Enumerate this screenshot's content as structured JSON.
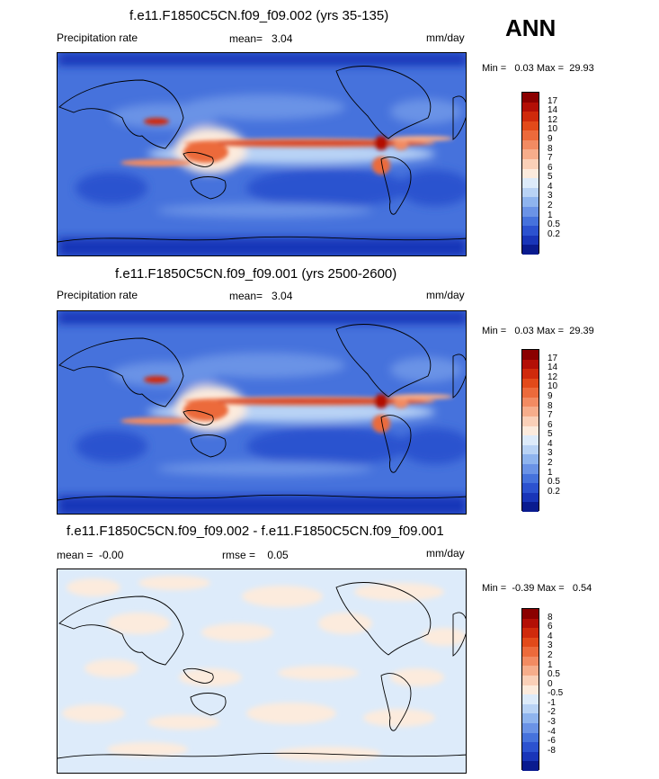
{
  "season": "ANN",
  "panels": [
    {
      "title": "f.e11.F1850C5CN.f09_f09.002 (yrs 35-135)",
      "left_label": "Precipitation rate",
      "mean_text": "mean=   3.04",
      "units": "mm/day",
      "minmax": "Min =   0.03 Max =  29.93"
    },
    {
      "title": "f.e11.F1850C5CN.f09_f09.001 (yrs 2500-2600)",
      "left_label": "Precipitation rate",
      "mean_text": "mean=   3.04",
      "units": "mm/day",
      "minmax": "Min =   0.03 Max =  29.39"
    },
    {
      "title": "f.e11.F1850C5CN.f09_f09.002 - f.e11.F1850C5CN.f09_f09.001",
      "left_label": "mean =  -0.00",
      "mean_text": "rmse =    0.05",
      "units": "mm/day",
      "minmax": "Min =  -0.39 Max =   0.54"
    }
  ],
  "colorbars": {
    "abs_ticks": [
      "17",
      "14",
      "12",
      "10",
      "9",
      "8",
      "7",
      "6",
      "5",
      "4",
      "3",
      "2",
      "1",
      "0.5",
      "0.2"
    ],
    "abs_colors": [
      "#8b0000",
      "#b30f06",
      "#cf2a0c",
      "#e24a1a",
      "#ec6a3b",
      "#f28b62",
      "#f6ad8b",
      "#fad0b8",
      "#fcebdd",
      "#ddebfa",
      "#b9d3f5",
      "#8fb4ee",
      "#6b93e6",
      "#4672dc",
      "#2c52cf",
      "#1935b8",
      "#0a1b8f"
    ],
    "diff_ticks": [
      "8",
      "6",
      "4",
      "3",
      "2",
      "1",
      "0.5",
      "0",
      "-0.5",
      "-1",
      "-2",
      "-3",
      "-4",
      "-6",
      "-8"
    ],
    "diff_colors": [
      "#8b0000",
      "#b30f06",
      "#cf2a0c",
      "#e24a1a",
      "#ec6a3b",
      "#f28b62",
      "#f6ad8b",
      "#fad0b8",
      "#fcebdd",
      "#ddebfa",
      "#b9d3f5",
      "#8fb4ee",
      "#6b93e6",
      "#4672dc",
      "#2c52cf",
      "#1935b8",
      "#0a1b8f"
    ]
  },
  "chart_data": [
    {
      "type": "heatmap",
      "title": "f.e11.F1850C5CN.f09_f09.002 (yrs 35-135)",
      "variable": "Precipitation rate",
      "units": "mm/day",
      "mean": 3.04,
      "min": 0.03,
      "max": 29.93,
      "contour_levels": [
        0.2,
        0.5,
        1,
        2,
        3,
        4,
        5,
        6,
        7,
        8,
        9,
        10,
        12,
        14,
        17
      ]
    },
    {
      "type": "heatmap",
      "title": "f.e11.F1850C5CN.f09_f09.001 (yrs 2500-2600)",
      "variable": "Precipitation rate",
      "units": "mm/day",
      "mean": 3.04,
      "min": 0.03,
      "max": 29.39,
      "contour_levels": [
        0.2,
        0.5,
        1,
        2,
        3,
        4,
        5,
        6,
        7,
        8,
        9,
        10,
        12,
        14,
        17
      ]
    },
    {
      "type": "heatmap",
      "title": "f.e11.F1850C5CN.f09_f09.002 - f.e11.F1850C5CN.f09_f09.001",
      "units": "mm/day",
      "mean": -0.0,
      "rmse": 0.05,
      "min": -0.39,
      "max": 0.54,
      "contour_levels": [
        -8,
        -6,
        -4,
        -3,
        -2,
        -1,
        -0.5,
        0,
        0.5,
        1,
        2,
        3,
        4,
        6,
        8
      ]
    }
  ]
}
